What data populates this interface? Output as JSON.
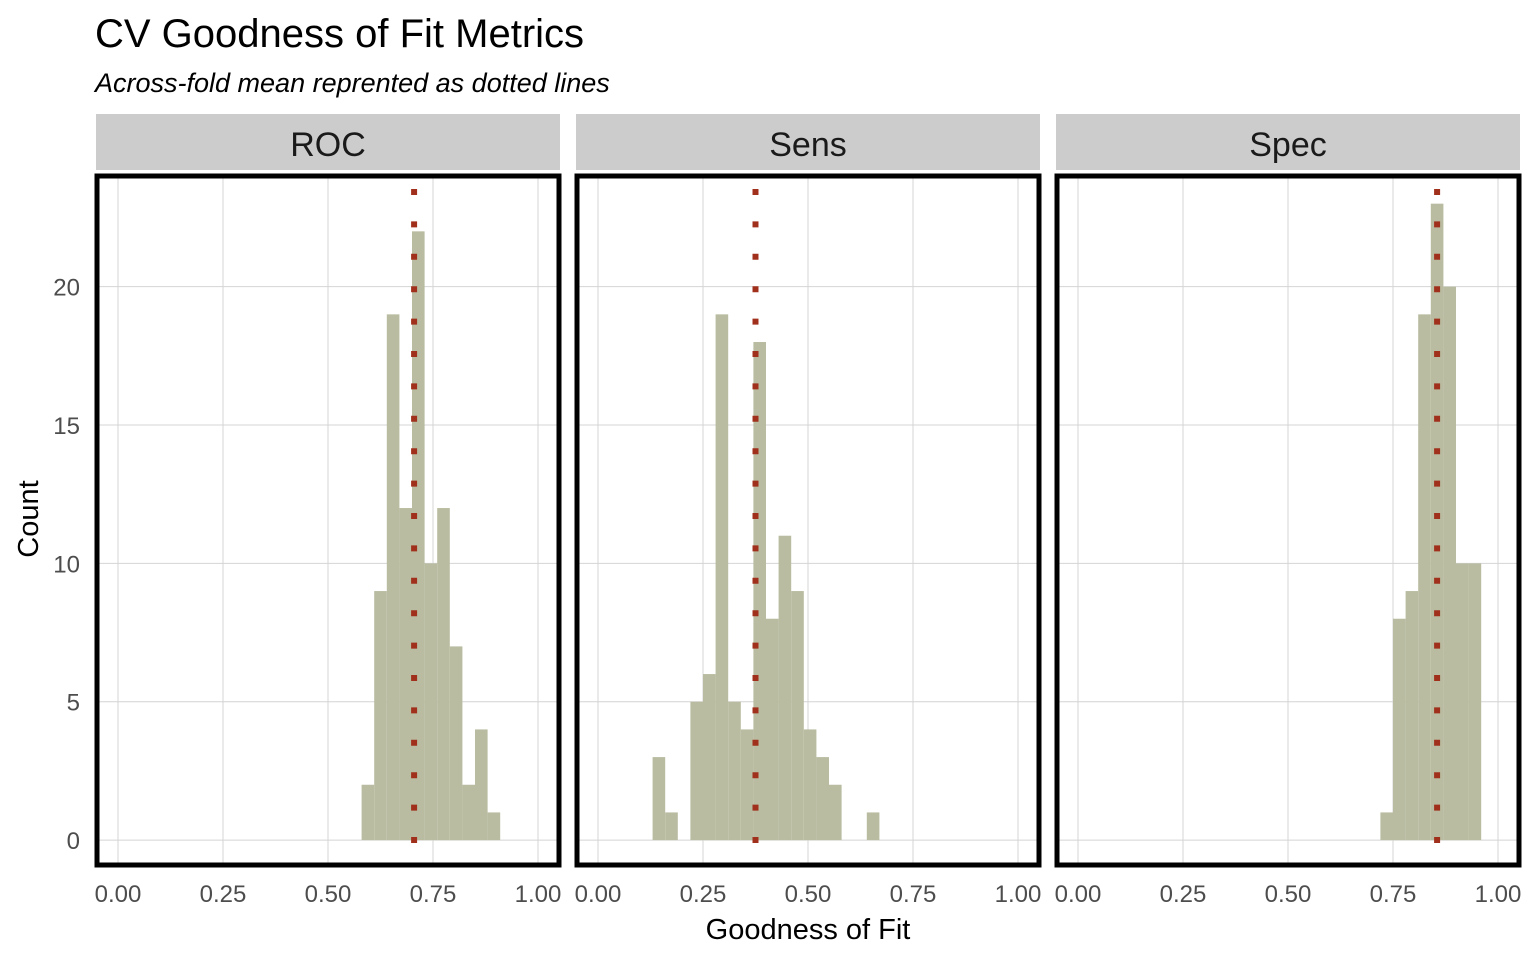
{
  "chart_data": {
    "type": "bar",
    "title": "CV Goodness of Fit Metrics",
    "subtitle": "Across-fold mean reprented as dotted lines",
    "xlabel": "Goodness of Fit",
    "ylabel": "Count",
    "xlim": [
      -0.05,
      1.05
    ],
    "ylim": [
      -0.9,
      24
    ],
    "x_ticks": [
      0.0,
      0.25,
      0.5,
      0.75,
      1.0
    ],
    "x_tick_labels": [
      "0.00",
      "0.25",
      "0.50",
      "0.75",
      "1.00"
    ],
    "y_ticks": [
      0,
      5,
      10,
      15,
      20
    ],
    "y_tick_labels": [
      "0",
      "5",
      "10",
      "15",
      "20"
    ],
    "grid": true,
    "bar_color": "#b9bca0",
    "mean_line_color": "#a0301c",
    "bin_width": 0.03,
    "panels": [
      {
        "name": "ROC",
        "mean": 0.705,
        "bins": [
          {
            "x0": 0.58,
            "count": 2
          },
          {
            "x0": 0.61,
            "count": 9
          },
          {
            "x0": 0.64,
            "count": 19
          },
          {
            "x0": 0.67,
            "count": 12
          },
          {
            "x0": 0.7,
            "count": 22
          },
          {
            "x0": 0.73,
            "count": 10
          },
          {
            "x0": 0.76,
            "count": 12
          },
          {
            "x0": 0.79,
            "count": 7
          },
          {
            "x0": 0.82,
            "count": 2
          },
          {
            "x0": 0.85,
            "count": 4
          },
          {
            "x0": 0.88,
            "count": 1
          }
        ]
      },
      {
        "name": "Sens",
        "mean": 0.375,
        "bins": [
          {
            "x0": 0.13,
            "count": 3
          },
          {
            "x0": 0.16,
            "count": 1
          },
          {
            "x0": 0.22,
            "count": 5
          },
          {
            "x0": 0.25,
            "count": 6
          },
          {
            "x0": 0.28,
            "count": 19
          },
          {
            "x0": 0.31,
            "count": 5
          },
          {
            "x0": 0.34,
            "count": 4
          },
          {
            "x0": 0.37,
            "count": 18
          },
          {
            "x0": 0.4,
            "count": 8
          },
          {
            "x0": 0.43,
            "count": 11
          },
          {
            "x0": 0.46,
            "count": 9
          },
          {
            "x0": 0.49,
            "count": 4
          },
          {
            "x0": 0.52,
            "count": 3
          },
          {
            "x0": 0.55,
            "count": 2
          },
          {
            "x0": 0.64,
            "count": 1
          }
        ]
      },
      {
        "name": "Spec",
        "mean": 0.855,
        "bins": [
          {
            "x0": 0.72,
            "count": 1
          },
          {
            "x0": 0.75,
            "count": 8
          },
          {
            "x0": 0.78,
            "count": 9
          },
          {
            "x0": 0.81,
            "count": 19
          },
          {
            "x0": 0.84,
            "count": 23
          },
          {
            "x0": 0.87,
            "count": 20
          },
          {
            "x0": 0.9,
            "count": 10
          },
          {
            "x0": 0.93,
            "count": 10
          }
        ]
      }
    ]
  }
}
